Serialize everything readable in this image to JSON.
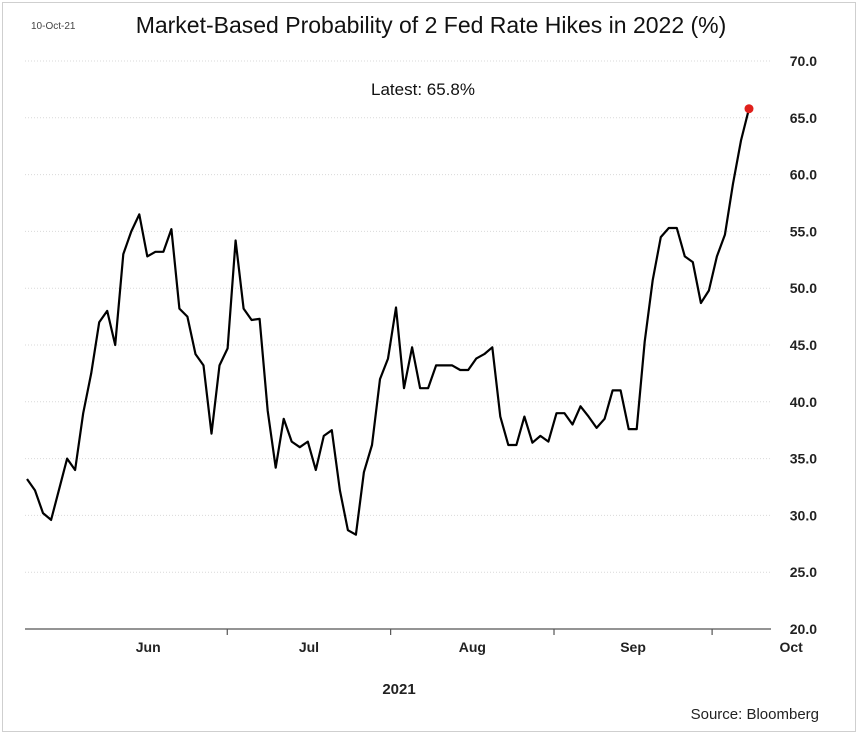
{
  "header": {
    "date_stamp": "10-Oct-21",
    "title": "Market-Based Probability of 2 Fed Rate Hikes in 2022 (%)"
  },
  "annotation": {
    "latest_label": "Latest:  65.8%"
  },
  "footer": {
    "year_label": "2021",
    "source": "Source: Bloomberg"
  },
  "colors": {
    "line": "#000000",
    "latest_marker": "#e0201b",
    "grid": "#d9d9d9"
  },
  "chart_data": {
    "type": "line",
    "title": "Market-Based Probability of 2 Fed Rate Hikes in 2022 (%)",
    "xlabel": "2021",
    "ylabel": "",
    "ylim": [
      20,
      70
    ],
    "yticks": [
      "20.0",
      "25.0",
      "30.0",
      "35.0",
      "40.0",
      "45.0",
      "50.0",
      "55.0",
      "60.0",
      "65.0",
      "70.0"
    ],
    "xticks": [
      "Jun",
      "Jul",
      "Aug",
      "Sep",
      "Oct"
    ],
    "grid": true,
    "y_axis_side": "right",
    "x_start": "2021-05-24",
    "x_end": "2021-10-08",
    "series": [
      {
        "values": [
          33.2,
          32.2,
          30.2,
          29.6,
          32.3,
          35.0,
          34.0,
          39.0,
          42.5,
          47.0,
          48.0,
          45.0,
          53.0,
          55.0,
          56.5,
          52.8,
          53.2,
          53.2,
          55.2,
          48.2,
          47.5,
          44.2,
          43.2,
          37.2,
          43.2,
          44.7,
          54.2,
          48.2,
          47.2,
          47.3,
          39.2,
          34.2,
          38.5,
          36.5,
          36.0,
          36.5,
          34.0,
          37.0,
          37.5,
          32.2,
          28.7,
          28.3,
          33.8,
          36.2,
          42.0,
          43.8,
          48.3,
          41.2,
          44.8,
          41.2,
          41.2,
          43.2,
          43.2,
          43.2,
          42.8,
          42.8,
          43.8,
          44.2,
          44.8,
          38.7,
          36.2,
          36.2,
          38.7,
          36.4,
          37.0,
          36.5,
          39.0,
          39.0,
          38.0,
          39.6,
          38.7,
          37.7,
          38.5,
          41.0,
          41.0,
          37.6,
          37.6,
          45.3,
          50.7,
          54.5,
          55.3,
          55.3,
          52.8,
          52.3,
          48.7,
          49.8,
          52.8,
          54.7,
          59.2,
          63.0,
          65.8
        ]
      }
    ],
    "latest": 65.8
  }
}
